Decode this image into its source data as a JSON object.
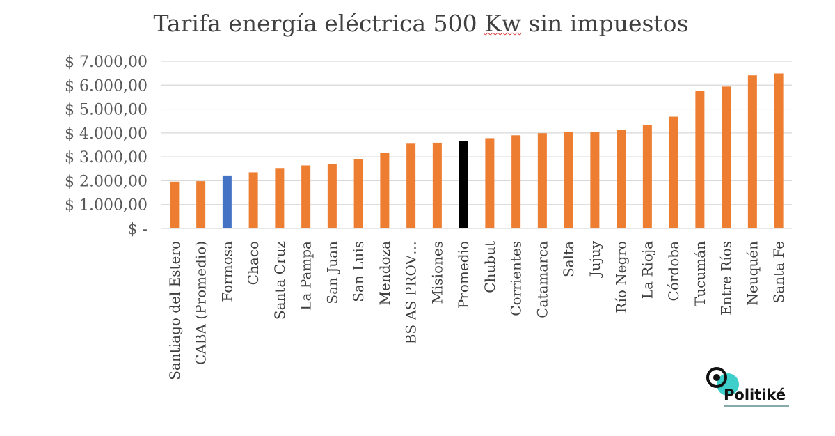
{
  "chart_data": {
    "type": "bar",
    "title": "Tarifa energía eléctrica 500 Kw sin impuestos",
    "title_parts": [
      "Tarifa energía eléctrica 500 ",
      "Kw",
      " sin impuestos"
    ],
    "xlabel": "",
    "ylabel": "",
    "ylim": [
      0,
      7000
    ],
    "yticks": [
      0,
      1000,
      2000,
      3000,
      4000,
      5000,
      6000,
      7000
    ],
    "ytick_labels": [
      "$ -",
      "$ 1.000,00",
      "$ 2.000,00",
      "$ 3.000,00",
      "$ 4.000,00",
      "$ 5.000,00",
      "$ 6.000,00",
      "$ 7.000,00"
    ],
    "grid": true,
    "categories": [
      "Santiago del Estero",
      "CABA (Promedio)",
      "Formosa",
      "Chaco",
      "Santa Cruz",
      "La Pampa",
      "San Juan",
      "San Luis",
      "Mendoza",
      "BS AS PROV…",
      "Misiones",
      "Promedio",
      "Chubut",
      "Corrientes",
      "Catamarca",
      "Salta",
      "Jujuy",
      "Río Negro",
      "La Rioja",
      "Córdoba",
      "Tucumán",
      "Entre Ríos",
      "Neuquén",
      "Santa Fe"
    ],
    "values": [
      1960,
      1980,
      2220,
      2350,
      2530,
      2640,
      2700,
      2900,
      3150,
      3550,
      3590,
      3670,
      3780,
      3900,
      3990,
      4030,
      4050,
      4130,
      4320,
      4680,
      5750,
      5940,
      6410,
      6490
    ],
    "colors": {
      "default": "#ED7D31",
      "Formosa": "#4472C4",
      "Promedio": "#000000"
    }
  },
  "logo": {
    "text": "Politiké",
    "accent": "#1CC7C1"
  }
}
